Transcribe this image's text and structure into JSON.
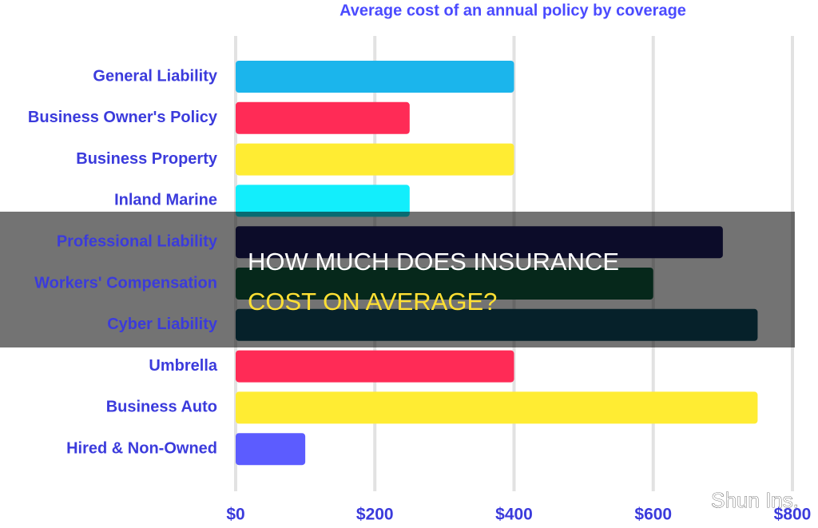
{
  "chart_data": {
    "type": "bar",
    "orientation": "horizontal",
    "title": "Average cost of an annual policy by coverage",
    "categories": [
      "General Liability",
      "Business Owner's Policy",
      "Business Property",
      "Inland Marine",
      "Professional Liability",
      "Workers' Compensation",
      "Cyber Liability",
      "Umbrella",
      "Business Auto",
      "Hired & Non-Owned"
    ],
    "values": [
      400,
      250,
      400,
      250,
      700,
      600,
      750,
      400,
      750,
      100
    ],
    "colors": [
      "#1bb5ec",
      "#ff2b56",
      "#ffec33",
      "#12eefc",
      "#1b1b5c",
      "#0f5a3c",
      "#0e4a5e",
      "#ff2b56",
      "#ffec33",
      "#5c5cff"
    ],
    "xlim": [
      0,
      800
    ],
    "xticks": [
      {
        "value": 0,
        "label": "$0"
      },
      {
        "value": 200,
        "label": "$200"
      },
      {
        "value": 400,
        "label": "$400"
      },
      {
        "value": 600,
        "label": "$600"
      },
      {
        "value": 800,
        "label": "$800"
      }
    ],
    "grid": true
  },
  "overlay": {
    "title_line_1": "HOW MUCH DOES INSURANCE",
    "title_line_2": "COST ON AVERAGE?"
  },
  "watermark": "Shun Ins."
}
